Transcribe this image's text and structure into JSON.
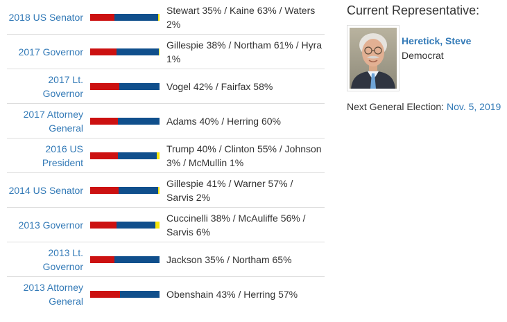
{
  "races": [
    {
      "title": "2018 US Senator",
      "results": "Stewart 35% / Kaine 63% / Waters 2%",
      "shares": {
        "rep": 35,
        "dem": 63,
        "other": 2
      }
    },
    {
      "title": "2017 Governor",
      "results": "Gillespie 38% / Northam 61% / Hyra 1%",
      "shares": {
        "rep": 38,
        "dem": 61,
        "other": 1
      }
    },
    {
      "title": "2017 Lt. Governor",
      "results": "Vogel 42% / Fairfax 58%",
      "shares": {
        "rep": 42,
        "dem": 58,
        "other": 0
      }
    },
    {
      "title": "2017 Attorney General",
      "results": "Adams 40% / Herring 60%",
      "shares": {
        "rep": 40,
        "dem": 60,
        "other": 0
      }
    },
    {
      "title": "2016 US President",
      "results": "Trump 40% / Clinton 55% / Johnson 3% / McMullin 1%",
      "shares": {
        "rep": 40,
        "dem": 55,
        "other": 4
      }
    },
    {
      "title": "2014 US Senator",
      "results": "Gillespie 41% / Warner 57% / Sarvis 2%",
      "shares": {
        "rep": 41,
        "dem": 57,
        "other": 2
      }
    },
    {
      "title": "2013 Governor",
      "results": "Cuccinelli 38% / McAuliffe 56% / Sarvis 6%",
      "shares": {
        "rep": 38,
        "dem": 56,
        "other": 6
      }
    },
    {
      "title": "2013 Lt. Governor",
      "results": "Jackson 35% / Northam 65%",
      "shares": {
        "rep": 35,
        "dem": 65,
        "other": 0
      }
    },
    {
      "title": "2013 Attorney General",
      "results": "Obenshain 43% / Herring 57%",
      "shares": {
        "rep": 43,
        "dem": 57,
        "other": 0
      }
    }
  ],
  "representative": {
    "heading": "Current Representative:",
    "name": "Heretick, Steve",
    "party": "Democrat",
    "next_election_label": "Next General Election:",
    "next_election_date": "Nov. 5, 2019"
  },
  "colors": {
    "republican": "#cc1111",
    "democrat": "#104f8c",
    "other": "#f5e50a",
    "link": "#337ab7"
  }
}
